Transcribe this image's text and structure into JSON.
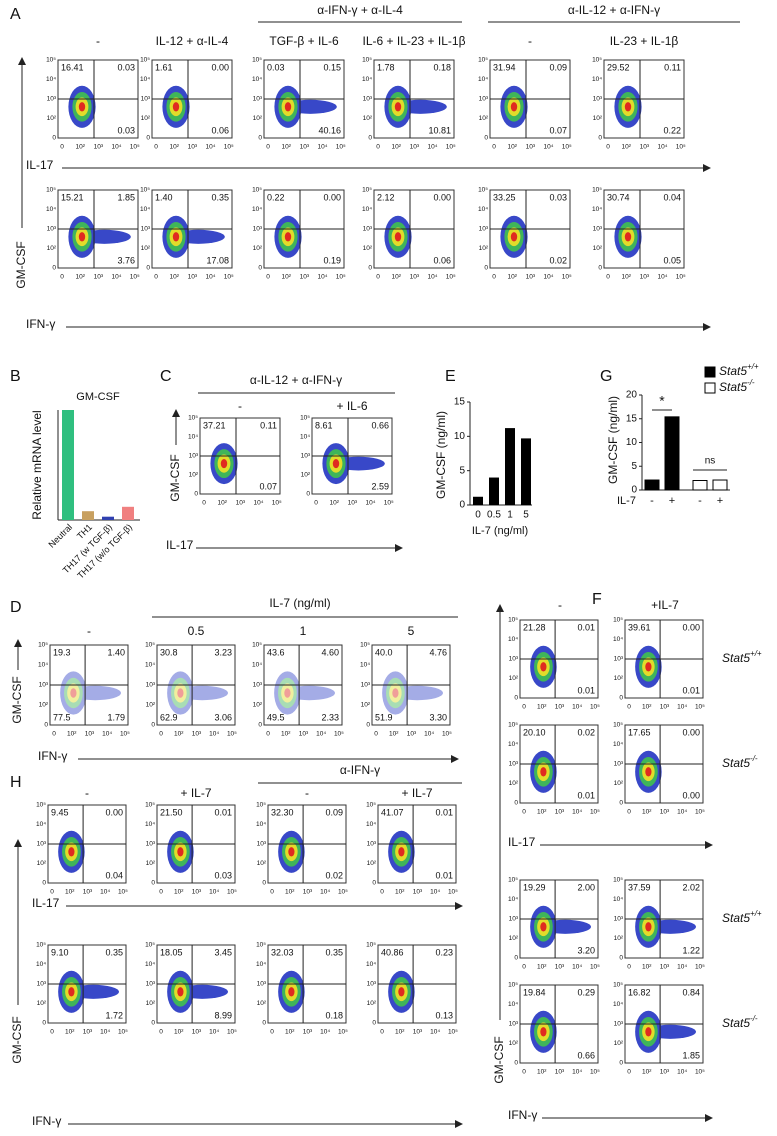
{
  "panel_labels": [
    "A",
    "B",
    "C",
    "D",
    "E",
    "F",
    "G",
    "H"
  ],
  "flow_ticks": {
    "y": [
      "10⁵",
      "10⁴",
      "10³",
      "10²",
      "0"
    ],
    "x": [
      "0",
      "10²",
      "10³",
      "10⁴",
      "10⁵"
    ]
  },
  "panel_a": {
    "group_headers": [
      "α-IFN-γ + α-IL-4",
      "α-IL-12 + α-IFN-γ"
    ],
    "columns": [
      "-",
      "IL-12 + α-IL-4",
      "TGF-β + IL-6",
      "IL-6 + IL-23 + IL-1β",
      "-",
      "IL-23 + IL-1β"
    ],
    "x_labels": [
      "IL-17",
      "IFN-γ"
    ],
    "y_label": "GM-CSF",
    "rows": [
      [
        {
          "tl": "16.41",
          "tr": "0.03",
          "br": "0.03"
        },
        {
          "tl": "1.61",
          "tr": "0.00",
          "br": "0.06"
        },
        {
          "tl": "0.03",
          "tr": "0.15",
          "br": "40.16"
        },
        {
          "tl": "1.78",
          "tr": "0.18",
          "br": "10.81"
        },
        {
          "tl": "31.94",
          "tr": "0.09",
          "br": "0.07"
        },
        {
          "tl": "29.52",
          "tr": "0.11",
          "br": "0.22"
        }
      ],
      [
        {
          "tl": "15.21",
          "tr": "1.85",
          "br": "3.76"
        },
        {
          "tl": "1.40",
          "tr": "0.35",
          "br": "17.08"
        },
        {
          "tl": "0.22",
          "tr": "0.00",
          "br": "0.19"
        },
        {
          "tl": "2.12",
          "tr": "0.00",
          "br": "0.06"
        },
        {
          "tl": "33.25",
          "tr": "0.03",
          "br": "0.02"
        },
        {
          "tl": "30.74",
          "tr": "0.04",
          "br": "0.05"
        }
      ]
    ]
  },
  "panel_b": {
    "title": "GM-CSF",
    "y_label": "Relative mRNA level",
    "categories": [
      "Neutral",
      "TH1",
      "TH17 (w TGF-β)",
      "TH17 (w/o TGF-β)"
    ],
    "values": [
      1.0,
      0.08,
      0.03,
      0.12
    ],
    "colors": [
      "#2fbf7f",
      "#c8a060",
      "#3040b0",
      "#f08080"
    ],
    "ylim": [
      0,
      1
    ]
  },
  "panel_c": {
    "group_header": "α-IL-12 + α-IFN-γ",
    "columns": [
      "-",
      "+ IL-6"
    ],
    "x_label": "IL-17",
    "y_label": "GM-CSF",
    "plots": [
      {
        "tl": "37.21",
        "tr": "0.11",
        "br": "0.07"
      },
      {
        "tl": "8.61",
        "tr": "0.66",
        "br": "2.59"
      }
    ]
  },
  "panel_d": {
    "group_header": "IL-7 (ng/ml)",
    "columns": [
      "-",
      "0.5",
      "1",
      "5"
    ],
    "x_label": "IFN-γ",
    "y_label": "GM-CSF",
    "plots": [
      {
        "tl": "19.3",
        "tr": "1.40",
        "bl": "77.5",
        "br": "1.79"
      },
      {
        "tl": "30.8",
        "tr": "3.23",
        "bl": "62.9",
        "br": "3.06"
      },
      {
        "tl": "43.6",
        "tr": "4.60",
        "bl": "49.5",
        "br": "2.33"
      },
      {
        "tl": "40.0",
        "tr": "4.76",
        "bl": "51.9",
        "br": "3.30"
      }
    ]
  },
  "panel_e": {
    "y_label": "GM-CSF (ng/ml)",
    "x_label": "IL-7 (ng/ml)",
    "categories": [
      "0",
      "0.5",
      "1",
      "5"
    ],
    "values": [
      1.2,
      4.0,
      11.2,
      9.7
    ],
    "color": "#000000",
    "ylim": [
      0,
      15
    ],
    "yticks": [
      0,
      5,
      10,
      15
    ]
  },
  "panel_f": {
    "columns": [
      "-",
      "+IL-7"
    ],
    "x_labels": [
      "IL-17",
      "IFN-γ"
    ],
    "y_label": "GM-CSF",
    "row_labels": [
      {
        "base": "Stat5",
        "sup": "+/+"
      },
      {
        "base": "Stat5",
        "sup": "-/-"
      },
      {
        "base": "Stat5",
        "sup": "+/+"
      },
      {
        "base": "Stat5",
        "sup": "-/-"
      }
    ],
    "rows": [
      [
        {
          "tl": "21.28",
          "tr": "0.01",
          "br": "0.01"
        },
        {
          "tl": "39.61",
          "tr": "0.00",
          "br": "0.01"
        }
      ],
      [
        {
          "tl": "20.10",
          "tr": "0.02",
          "br": "0.01"
        },
        {
          "tl": "17.65",
          "tr": "0.00",
          "br": "0.00"
        }
      ],
      [
        {
          "tl": "19.29",
          "tr": "2.00",
          "br": "3.20"
        },
        {
          "tl": "37.59",
          "tr": "2.02",
          "br": "1.22"
        }
      ],
      [
        {
          "tl": "19.84",
          "tr": "0.29",
          "br": "0.66"
        },
        {
          "tl": "16.82",
          "tr": "0.84",
          "br": "1.85"
        }
      ]
    ]
  },
  "panel_g": {
    "y_label": "GM-CSF (ng/ml)",
    "x_label": "IL-7",
    "categories": [
      "-",
      "+",
      "-",
      "+"
    ],
    "ylim": [
      0,
      20
    ],
    "yticks": [
      0,
      5,
      10,
      15,
      20
    ],
    "series": [
      {
        "name": {
          "base": "Stat5",
          "sup": "+/+"
        },
        "color": "#000000",
        "values": [
          2.1,
          15.4
        ]
      },
      {
        "name": {
          "base": "Stat5",
          "sup": "-/-"
        },
        "color": "#ffffff",
        "values": [
          2.0,
          2.1
        ]
      }
    ],
    "annotations": [
      "*",
      "ns"
    ]
  },
  "panel_h": {
    "group_header": "α-IFN-γ",
    "columns": [
      "-",
      "+ IL-7",
      "-",
      "+ IL-7"
    ],
    "x_labels": [
      "IL-17",
      "IFN-γ"
    ],
    "y_label": "GM-CSF",
    "rows": [
      [
        {
          "tl": "9.45",
          "tr": "0.00",
          "br": "0.04"
        },
        {
          "tl": "21.50",
          "tr": "0.01",
          "br": "0.03"
        },
        {
          "tl": "32.30",
          "tr": "0.09",
          "br": "0.02"
        },
        {
          "tl": "41.07",
          "tr": "0.01",
          "br": "0.01"
        }
      ],
      [
        {
          "tl": "9.10",
          "tr": "0.35",
          "br": "1.72"
        },
        {
          "tl": "18.05",
          "tr": "3.45",
          "br": "8.99"
        },
        {
          "tl": "32.03",
          "tr": "0.35",
          "br": "0.18"
        },
        {
          "tl": "40.86",
          "tr": "0.23",
          "br": "0.13"
        }
      ]
    ]
  }
}
